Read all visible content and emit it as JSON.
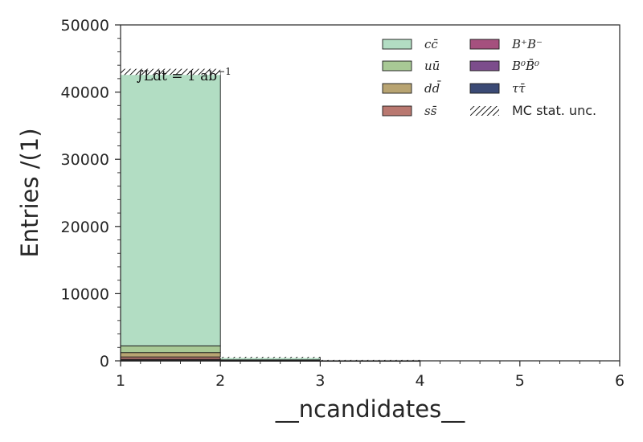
{
  "chart_data": {
    "type": "bar",
    "stacked": true,
    "histogram": true,
    "bin_edges": [
      1,
      2,
      3,
      4,
      5,
      6
    ],
    "xlim": [
      1,
      6
    ],
    "ylim": [
      0,
      50000
    ],
    "x_ticks": [
      "1",
      "2",
      "3",
      "4",
      "5",
      "6"
    ],
    "y_ticks": [
      "0",
      "10000",
      "20000",
      "30000",
      "40000",
      "50000"
    ],
    "xlabel": "__ncandidates__",
    "ylabel": "Entries /(1)",
    "annotation": "∫Ldt = 1 ab",
    "annotation_sup": "−1",
    "legend_position": "top-right",
    "grid": false,
    "series": [
      {
        "name": "ττ̄",
        "color": "#3b4a75",
        "values": [
          30,
          8,
          2,
          0,
          0
        ]
      },
      {
        "name": "B⁰B̄⁰",
        "color": "#7c4d8c",
        "values": [
          80,
          25,
          5,
          0,
          0
        ]
      },
      {
        "name": "B⁺B⁻",
        "color": "#a5507e",
        "values": [
          120,
          30,
          5,
          0,
          0
        ]
      },
      {
        "name": "ss̄",
        "color": "#b97870",
        "values": [
          350,
          15,
          3,
          0,
          0
        ]
      },
      {
        "name": "dd̄",
        "color": "#b8a472",
        "values": [
          650,
          25,
          4,
          0,
          0
        ]
      },
      {
        "name": "uū",
        "color": "#a8c995",
        "values": [
          1000,
          40,
          6,
          0,
          0
        ]
      },
      {
        "name": "cc̄",
        "color": "#b2ddc3",
        "values": [
          40780,
          400,
          45,
          0,
          0
        ]
      }
    ],
    "uncertainty_label": "MC stat. unc.",
    "legend_columns": [
      [
        "cc̄",
        "uū",
        "dd̄",
        "ss̄"
      ],
      [
        "B⁺B⁻",
        "B⁰B̄⁰",
        "ττ̄",
        "MC stat. unc."
      ]
    ]
  }
}
